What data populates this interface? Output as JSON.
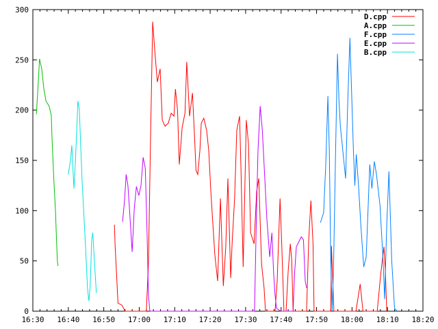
{
  "chart_data": {
    "type": "line",
    "title": "",
    "xlabel": "",
    "ylabel": "",
    "x_unit": "minutes since 16:30",
    "xlim": [
      0,
      110
    ],
    "ylim": [
      0,
      300
    ],
    "x_ticks": [
      {
        "value": 0,
        "label": "16:30"
      },
      {
        "value": 10,
        "label": "16:40"
      },
      {
        "value": 20,
        "label": "16:50"
      },
      {
        "value": 30,
        "label": "17:00"
      },
      {
        "value": 40,
        "label": "17:10"
      },
      {
        "value": 50,
        "label": "17:20"
      },
      {
        "value": 60,
        "label": "17:30"
      },
      {
        "value": 70,
        "label": "17:40"
      },
      {
        "value": 80,
        "label": "17:50"
      },
      {
        "value": 90,
        "label": "18:00"
      },
      {
        "value": 100,
        "label": "18:10"
      },
      {
        "value": 110,
        "label": "18:20"
      }
    ],
    "x_minor_step": 2,
    "y_ticks": [
      {
        "value": 0,
        "label": "0"
      },
      {
        "value": 50,
        "label": "50"
      },
      {
        "value": 100,
        "label": "100"
      },
      {
        "value": 150,
        "label": "150"
      },
      {
        "value": 200,
        "label": "200"
      },
      {
        "value": 250,
        "label": "250"
      },
      {
        "value": 300,
        "label": "300"
      }
    ],
    "grid": false,
    "legend_position": "top-right",
    "series": [
      {
        "name": "D.cpp",
        "color": "#ff0000",
        "points": [
          [
            23.0,
            86
          ],
          [
            23.2,
            65
          ],
          [
            23.6,
            37
          ],
          [
            24.0,
            8
          ],
          [
            25.1,
            6
          ],
          [
            26,
            0
          ],
          [
            32.0,
            0
          ],
          [
            32.6,
            47
          ],
          [
            33.2,
            173
          ],
          [
            33.8,
            288
          ],
          [
            34.4,
            258
          ],
          [
            35.1,
            228
          ],
          [
            35.9,
            241
          ],
          [
            36.5,
            190
          ],
          [
            37.3,
            184
          ],
          [
            38.2,
            187
          ],
          [
            39.0,
            197
          ],
          [
            39.8,
            194
          ],
          [
            40.2,
            221
          ],
          [
            40.8,
            200
          ],
          [
            41.3,
            146
          ],
          [
            42.1,
            183
          ],
          [
            42.9,
            197
          ],
          [
            43.4,
            248
          ],
          [
            44.2,
            194
          ],
          [
            45.0,
            217
          ],
          [
            45.6,
            173
          ],
          [
            46.0,
            140
          ],
          [
            46.5,
            136
          ],
          [
            47.1,
            160
          ],
          [
            47.5,
            187
          ],
          [
            48.2,
            192
          ],
          [
            49.0,
            180
          ],
          [
            49.6,
            160
          ],
          [
            50.2,
            119
          ],
          [
            50.8,
            85
          ],
          [
            51.3,
            57
          ],
          [
            52.1,
            30
          ],
          [
            52.9,
            112
          ],
          [
            53.7,
            25
          ],
          [
            54.4,
            64
          ],
          [
            55.0,
            132
          ],
          [
            55.8,
            33
          ],
          [
            56.2,
            68
          ],
          [
            56.9,
            112
          ],
          [
            57.5,
            180
          ],
          [
            58.3,
            194
          ],
          [
            58.7,
            139
          ],
          [
            59.3,
            44
          ],
          [
            60.2,
            190
          ],
          [
            60.8,
            166
          ],
          [
            61.4,
            78
          ],
          [
            62.4,
            67
          ],
          [
            63.1,
            119
          ],
          [
            63.7,
            132
          ],
          [
            64.5,
            47
          ],
          [
            65.2,
            23
          ],
          [
            65.6,
            0
          ],
          [
            68.3,
            0
          ],
          [
            68.9,
            30
          ],
          [
            69.7,
            112
          ],
          [
            70.2,
            64
          ],
          [
            70.8,
            0
          ],
          [
            71.4,
            0
          ],
          [
            72.0,
            40
          ],
          [
            72.6,
            67
          ],
          [
            73.0,
            50
          ],
          [
            73.4,
            0
          ],
          [
            77.2,
            0
          ],
          [
            77.8,
            71
          ],
          [
            78.4,
            110
          ],
          [
            79.0,
            67
          ],
          [
            79.3,
            0
          ],
          [
            84.0,
            0
          ],
          [
            84.2,
            65
          ],
          [
            84.9,
            0
          ],
          [
            91.1,
            0
          ],
          [
            92.3,
            27
          ],
          [
            93.1,
            0
          ],
          [
            97.1,
            0
          ],
          [
            98.1,
            37
          ],
          [
            99.0,
            64
          ],
          [
            99.4,
            40
          ],
          [
            99.8,
            0
          ]
        ]
      },
      {
        "name": "A.cpp",
        "color": "#00c000",
        "points": [
          [
            1.0,
            196
          ],
          [
            1.35,
            217
          ],
          [
            1.9,
            251
          ],
          [
            2.5,
            241
          ],
          [
            3.1,
            221
          ],
          [
            3.7,
            209
          ],
          [
            4.6,
            204
          ],
          [
            5.2,
            195
          ],
          [
            5.4,
            173
          ],
          [
            5.6,
            156
          ],
          [
            6.0,
            125
          ],
          [
            6.4,
            98
          ],
          [
            6.6,
            78
          ],
          [
            6.9,
            50
          ],
          [
            7.1,
            45
          ]
        ]
      },
      {
        "name": "F.cpp",
        "color": "#0080ff",
        "points": [
          [
            81.1,
            88
          ],
          [
            82.0,
            98
          ],
          [
            82.6,
            146
          ],
          [
            83.2,
            214
          ],
          [
            83.6,
            160
          ],
          [
            84.0,
            50
          ],
          [
            84.4,
            0
          ],
          [
            84.8,
            44
          ],
          [
            85.3,
            146
          ],
          [
            85.9,
            256
          ],
          [
            86.3,
            211
          ],
          [
            86.7,
            184
          ],
          [
            87.3,
            163
          ],
          [
            88.2,
            132
          ],
          [
            88.8,
            207
          ],
          [
            89.4,
            272
          ],
          [
            89.8,
            228
          ],
          [
            90.4,
            160
          ],
          [
            90.8,
            125
          ],
          [
            91.2,
            156
          ],
          [
            91.8,
            127
          ],
          [
            92.5,
            85
          ],
          [
            93.3,
            44
          ],
          [
            94.0,
            54
          ],
          [
            95.0,
            146
          ],
          [
            95.6,
            122
          ],
          [
            96.3,
            149
          ],
          [
            96.9,
            136
          ],
          [
            97.9,
            105
          ],
          [
            98.8,
            47
          ],
          [
            99.2,
            12
          ],
          [
            99.8,
            85
          ],
          [
            100.4,
            139
          ],
          [
            101.2,
            50
          ],
          [
            102.0,
            3
          ],
          [
            102.7,
            0
          ]
        ]
      },
      {
        "name": "E.cpp",
        "color": "#c000ff",
        "points": [
          [
            25.3,
            89
          ],
          [
            25.9,
            112
          ],
          [
            26.3,
            136
          ],
          [
            26.8,
            125
          ],
          [
            27.2,
            105
          ],
          [
            28.0,
            59
          ],
          [
            28.6,
            102
          ],
          [
            29.2,
            124
          ],
          [
            29.9,
            115
          ],
          [
            30.5,
            125
          ],
          [
            31.1,
            153
          ],
          [
            31.7,
            142
          ],
          [
            32.2,
            78
          ],
          [
            32.6,
            16
          ],
          [
            33.0,
            0
          ],
          [
            62.2,
            0
          ],
          [
            62.5,
            0
          ],
          [
            63.1,
            105
          ],
          [
            63.5,
            160
          ],
          [
            64.1,
            204
          ],
          [
            64.7,
            180
          ],
          [
            65.3,
            139
          ],
          [
            66.0,
            91
          ],
          [
            66.8,
            54
          ],
          [
            67.4,
            78
          ],
          [
            67.9,
            38
          ],
          [
            68.3,
            16
          ],
          [
            68.7,
            3
          ],
          [
            69.9,
            0
          ],
          [
            73.4,
            0
          ],
          [
            73.8,
            37
          ],
          [
            74.3,
            64
          ],
          [
            75.7,
            74
          ],
          [
            76.3,
            71
          ],
          [
            76.8,
            30
          ],
          [
            77.2,
            23
          ]
        ]
      },
      {
        "name": "B.cpp",
        "color": "#00e0e0",
        "points": [
          [
            10.0,
            136
          ],
          [
            10.6,
            150
          ],
          [
            11.0,
            165
          ],
          [
            11.2,
            149
          ],
          [
            11.6,
            122
          ],
          [
            12.0,
            149
          ],
          [
            12.4,
            183
          ],
          [
            12.7,
            209
          ],
          [
            13.1,
            201
          ],
          [
            13.5,
            163
          ],
          [
            13.9,
            129
          ],
          [
            14.3,
            102
          ],
          [
            14.9,
            61
          ],
          [
            15.4,
            23
          ],
          [
            15.8,
            10
          ],
          [
            16.2,
            27
          ],
          [
            16.6,
            71
          ],
          [
            16.9,
            78
          ],
          [
            17.4,
            47
          ],
          [
            17.9,
            18
          ]
        ]
      }
    ]
  }
}
